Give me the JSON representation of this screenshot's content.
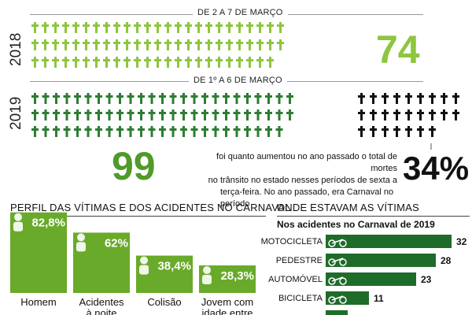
{
  "colors": {
    "green": "#8dc63f",
    "dark_green": "#2e7d32",
    "bar_green": "#6aaa2a",
    "black": "#111111",
    "gray_line": "#999999"
  },
  "header": {
    "period_2018": "DE 2 A 7 DE MARÇO",
    "period_2019": "DE 1º A 6 DE MARÇO",
    "year_2018": "2018",
    "year_2019": "2019",
    "total_2018": "74",
    "total_2019": "99",
    "increase_pct": "34%",
    "increase_caption_lines": [
      "foi quanto aumentou no ano passado o total de mortes",
      "no trânsito no estado nesses períodos de sexta a",
      "terça-feira. No ano passado, era Carnaval no período"
    ]
  },
  "chart_data": [
    {
      "type": "pictogram",
      "categories": [
        "2018",
        "2019"
      ],
      "values": [
        74,
        99
      ],
      "note": "each cross = one death; 2019 extra deaths shown in black"
    },
    {
      "type": "bar",
      "title": "PERFIL DAS VÍTIMAS E DOS ACIDENTES NO CARNAVAL",
      "categories": [
        "Homem",
        "Acidentes à noite",
        "Colisão",
        "Jovem com idade entre"
      ],
      "values": [
        82.8,
        62,
        38.4,
        28.3
      ],
      "value_labels": [
        "82,8%",
        "62%",
        "38,4%",
        "28,3%"
      ],
      "icons": [
        "man-icon",
        "moon-icon",
        "collision-icon",
        "young-man-icon"
      ],
      "ylim": [
        0,
        100
      ]
    },
    {
      "type": "bar",
      "orientation": "horizontal",
      "title": "ONDE ESTAVAM AS VÍTIMAS",
      "subtitle": "Nos acidentes no Carnaval de 2019",
      "categories": [
        "MOTOCICLETA",
        "PEDESTRE",
        "AUTOMÓVEL",
        "BICICLETA",
        ""
      ],
      "values": [
        32,
        28,
        23,
        11,
        null
      ],
      "icons": [
        "motorcycle-icon",
        "pedestrian-icon",
        "car-icon",
        "bicycle-icon",
        ""
      ]
    }
  ]
}
